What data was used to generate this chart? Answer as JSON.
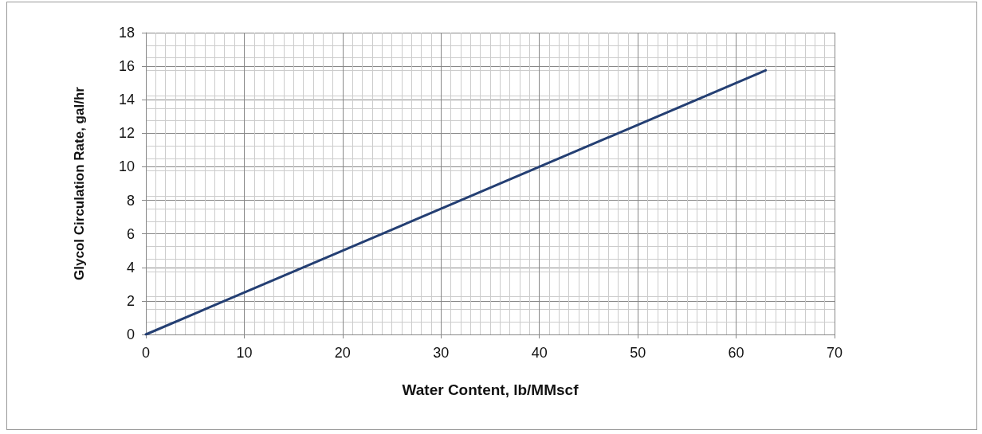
{
  "chart_data": {
    "type": "line",
    "xlabel": "Water Content, lb/MMscf",
    "ylabel": "Glycol Circulation Rate, gal/hr",
    "x": [
      0,
      63
    ],
    "series": [
      {
        "color": "#243f73",
        "values": [
          0,
          15.75
        ]
      }
    ],
    "xlim": [
      0,
      70
    ],
    "xticks": [
      0,
      10,
      20,
      30,
      40,
      50,
      60,
      70
    ],
    "ylim": [
      0,
      18
    ],
    "yticks": [
      0,
      2,
      4,
      6,
      8,
      10,
      12,
      14,
      16,
      18
    ],
    "grid": true,
    "marker": "none",
    "line_style": "solid"
  }
}
